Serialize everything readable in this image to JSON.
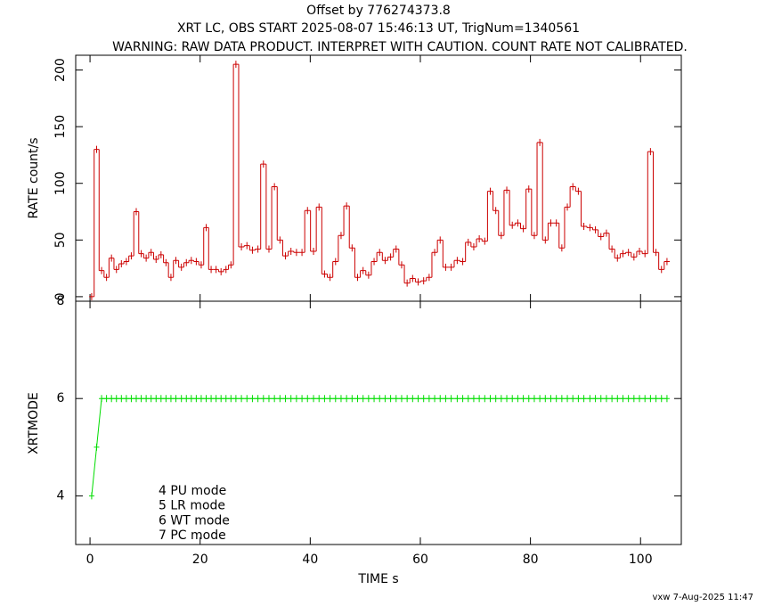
{
  "chart_data": [
    {
      "type": "step",
      "title": "Offset by 776274373.8",
      "subtitle": "XRT LC, OBS START 2025-08-07 15:46:13 UT, TrigNum=1340561",
      "warning": "WARNING: RAW DATA PRODUCT. INTERPRET WITH CAUTION. COUNT RATE NOT CALIBRATED.",
      "ylabel": "RATE  count/s",
      "color": "#cc0000",
      "xlim": [
        -2.6,
        107.4
      ],
      "ylim": [
        -4,
        213
      ],
      "yticks": [
        0,
        50,
        100,
        150,
        200
      ],
      "x": [
        0.3,
        1.2,
        2.1,
        3.0,
        3.9,
        4.8,
        5.7,
        6.6,
        7.5,
        8.4,
        9.3,
        10.2,
        11.1,
        12.0,
        12.9,
        13.8,
        14.7,
        15.6,
        16.6,
        17.5,
        18.4,
        19.3,
        20.2,
        21.1,
        22.0,
        22.9,
        23.8,
        24.7,
        25.6,
        26.5,
        27.5,
        28.5,
        29.5,
        30.5,
        31.5,
        32.5,
        33.5,
        34.5,
        35.5,
        36.5,
        37.5,
        38.5,
        39.5,
        40.6,
        41.6,
        42.6,
        43.6,
        44.6,
        45.6,
        46.6,
        47.6,
        48.6,
        49.6,
        50.6,
        51.6,
        52.6,
        53.6,
        54.6,
        55.6,
        56.6,
        57.6,
        58.6,
        59.6,
        60.6,
        61.6,
        62.6,
        63.6,
        64.6,
        65.6,
        66.7,
        67.7,
        68.7,
        69.7,
        70.7,
        71.7,
        72.7,
        73.7,
        74.7,
        75.7,
        76.7,
        77.7,
        78.7,
        79.7,
        80.7,
        81.7,
        82.7,
        83.7,
        84.7,
        85.7,
        86.7,
        87.7,
        88.7,
        89.7,
        90.8,
        91.8,
        92.8,
        93.8,
        94.8,
        95.8,
        96.8,
        97.8,
        98.8,
        99.8,
        100.8,
        101.8,
        102.8,
        103.8,
        104.8
      ],
      "values": [
        0,
        130,
        23,
        17,
        34,
        24,
        29,
        31,
        36,
        75,
        38,
        34,
        39,
        33,
        37,
        30,
        17,
        32,
        26,
        30,
        32,
        31,
        28,
        61,
        24,
        24,
        22,
        24,
        28,
        205,
        44,
        45,
        41,
        42,
        117,
        42,
        97,
        50,
        36,
        40,
        39,
        39,
        76,
        40,
        79,
        20,
        17,
        31,
        54,
        80,
        43,
        17,
        23,
        19,
        31,
        39,
        32,
        35,
        42,
        28,
        12,
        16,
        13,
        14,
        17,
        39,
        50,
        26,
        26,
        32,
        31,
        48,
        44,
        51,
        49,
        93,
        76,
        54,
        94,
        63,
        65,
        60,
        95,
        54,
        136,
        50,
        65,
        65,
        43,
        79,
        97,
        93,
        62,
        61,
        59,
        53,
        56,
        42,
        34,
        38,
        39,
        35,
        40,
        38,
        128,
        39,
        24,
        31
      ]
    },
    {
      "type": "line",
      "ylabel": "XRTMODE",
      "xlabel": "TIME  s",
      "color": "#00dd00",
      "xlim": [
        -2.6,
        107.4
      ],
      "xticks": [
        0,
        20,
        40,
        60,
        80,
        100
      ],
      "ylim": [
        3,
        8
      ],
      "yticks": [
        4,
        6,
        8
      ],
      "annotations": [
        "4 PU mode",
        "5 LR mode",
        "6 WT mode",
        "7 PC mode"
      ],
      "x": [
        0.3,
        1.2,
        2.1,
        3.0,
        3.9,
        4.8,
        5.7,
        6.6,
        7.5,
        8.4,
        9.3,
        10.2,
        11.1,
        12.0,
        12.9,
        13.8,
        14.7,
        15.6,
        16.6,
        17.5,
        18.4,
        19.3,
        20.2,
        21.1,
        22.0,
        22.9,
        23.8,
        24.7,
        25.6,
        26.5,
        27.5,
        28.5,
        29.5,
        30.5,
        31.5,
        32.5,
        33.5,
        34.5,
        35.5,
        36.5,
        37.5,
        38.5,
        39.5,
        40.6,
        41.6,
        42.6,
        43.6,
        44.6,
        45.6,
        46.6,
        47.6,
        48.6,
        49.6,
        50.6,
        51.6,
        52.6,
        53.6,
        54.6,
        55.6,
        56.6,
        57.6,
        58.6,
        59.6,
        60.6,
        61.6,
        62.6,
        63.6,
        64.6,
        65.6,
        66.7,
        67.7,
        68.7,
        69.7,
        70.7,
        71.7,
        72.7,
        73.7,
        74.7,
        75.7,
        76.7,
        77.7,
        78.7,
        79.7,
        80.7,
        81.7,
        82.7,
        83.7,
        84.7,
        85.7,
        86.7,
        87.7,
        88.7,
        89.7,
        90.8,
        91.8,
        92.8,
        93.8,
        94.8,
        95.8,
        96.8,
        97.8,
        98.8,
        99.8,
        100.8,
        101.8,
        102.8,
        103.8,
        104.8
      ],
      "values": [
        4,
        5,
        6,
        6,
        6,
        6,
        6,
        6,
        6,
        6,
        6,
        6,
        6,
        6,
        6,
        6,
        6,
        6,
        6,
        6,
        6,
        6,
        6,
        6,
        6,
        6,
        6,
        6,
        6,
        6,
        6,
        6,
        6,
        6,
        6,
        6,
        6,
        6,
        6,
        6,
        6,
        6,
        6,
        6,
        6,
        6,
        6,
        6,
        6,
        6,
        6,
        6,
        6,
        6,
        6,
        6,
        6,
        6,
        6,
        6,
        6,
        6,
        6,
        6,
        6,
        6,
        6,
        6,
        6,
        6,
        6,
        6,
        6,
        6,
        6,
        6,
        6,
        6,
        6,
        6,
        6,
        6,
        6,
        6,
        6,
        6,
        6,
        6,
        6,
        6,
        6,
        6,
        6,
        6,
        6,
        6,
        6,
        6,
        6,
        6,
        6,
        6,
        6,
        6,
        6,
        6,
        6,
        6
      ],
      "footer": "vxw  7-Aug-2025 11:47"
    }
  ]
}
